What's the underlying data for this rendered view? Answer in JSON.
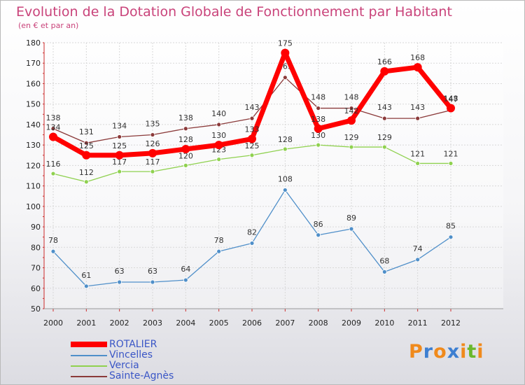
{
  "chart_data": {
    "type": "line",
    "title": "Evolution de la Dotation Globale de Fonctionnement par Habitant",
    "subtitle": "(en € et par an)",
    "xlabel": "",
    "ylabel": "",
    "ylim": [
      50,
      180
    ],
    "yticks": [
      50,
      60,
      70,
      80,
      90,
      100,
      110,
      120,
      130,
      140,
      150,
      160,
      170,
      180
    ],
    "x": [
      "2000",
      "2001",
      "2002",
      "2003",
      "2004",
      "2005",
      "2006",
      "2007",
      "2008",
      "2009",
      "2010",
      "2011",
      "2012"
    ],
    "grid": true,
    "legend_position": "bottom-left",
    "series": [
      {
        "name": "ROTALIER",
        "color": "#ff0000",
        "values": [
          134,
          125,
          125,
          126,
          128,
          130,
          133,
          175,
          138,
          142,
          166,
          168,
          148
        ]
      },
      {
        "name": "Vincelles",
        "color": "#4f8fc9",
        "values": [
          78,
          61,
          63,
          63,
          64,
          78,
          82,
          108,
          86,
          89,
          68,
          74,
          85
        ]
      },
      {
        "name": "Vercia",
        "color": "#8fd14f",
        "values": [
          116,
          112,
          117,
          117,
          120,
          123,
          125,
          128,
          130,
          129,
          129,
          121,
          121
        ]
      },
      {
        "name": "Sainte-Agnès",
        "color": "#8b3a3a",
        "values": [
          138,
          131,
          134,
          135,
          138,
          140,
          143,
          163,
          148,
          148,
          143,
          143,
          147
        ]
      }
    ]
  },
  "brand": {
    "letters": [
      "P",
      "r",
      "o",
      "x",
      "i",
      "t",
      "i"
    ],
    "colors": [
      "#f08a1c",
      "#3d7fd1",
      "#f08a1c",
      "#3d7fd1",
      "#f08a1c",
      "#6ab82c",
      "#f08a1c"
    ]
  }
}
